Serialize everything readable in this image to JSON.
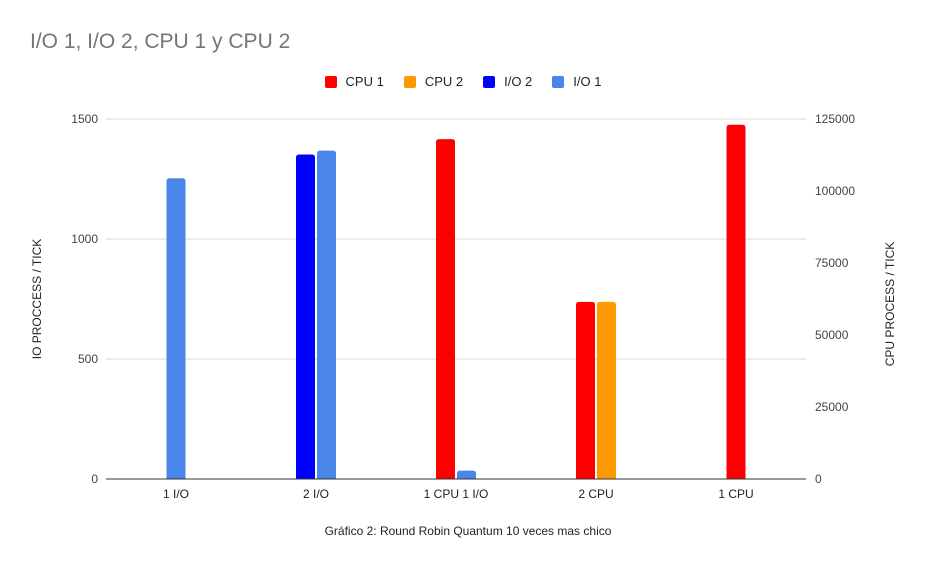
{
  "chart_data": {
    "type": "bar",
    "title": "I/O 1, I/O 2, CPU 1 y CPU 2",
    "xlabel": "Gráfico 2: Round Robin Quantum 10 veces mas chico",
    "ylabel_left": "IO PROCCESS  / TICK",
    "ylabel_right": "CPU PROCESS / TICK",
    "ylim_left": [
      0,
      1500
    ],
    "ylim_right": [
      0,
      125000
    ],
    "yticks_left": [
      0,
      500,
      1000,
      1500
    ],
    "yticks_right": [
      0,
      25000,
      50000,
      75000,
      100000,
      125000
    ],
    "grid": true,
    "legend_position": "top",
    "categories": [
      "1 I/O",
      "2 I/O",
      "1 CPU 1 I/O",
      "2 CPU",
      "1 CPU"
    ],
    "series": [
      {
        "name": "CPU 1",
        "axis": "right",
        "color": "#ff0000",
        "values": [
          null,
          null,
          118000,
          61500,
          123000
        ]
      },
      {
        "name": "CPU 2",
        "axis": "right",
        "color": "#ff9900",
        "values": [
          null,
          null,
          null,
          61500,
          null
        ]
      },
      {
        "name": "I/O 2",
        "axis": "left",
        "color": "#0000ff",
        "values": [
          null,
          1352,
          null,
          null,
          null
        ]
      },
      {
        "name": "I/O 1",
        "axis": "left",
        "color": "#4a86e8",
        "values": [
          1253,
          1368,
          35,
          null,
          null
        ]
      }
    ]
  }
}
